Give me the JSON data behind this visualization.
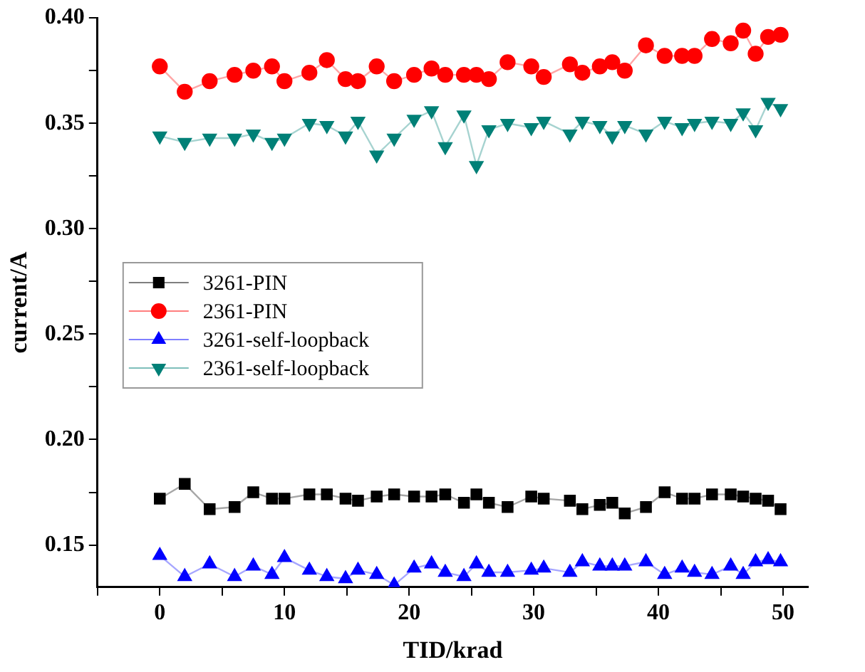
{
  "chart_data": {
    "type": "line",
    "xlabel": "TID/krad",
    "ylabel": "current/A",
    "x": [
      0,
      2,
      4,
      6,
      7.5,
      9,
      10,
      12,
      13.4,
      14.9,
      15.9,
      17.4,
      18.8,
      20.4,
      21.8,
      22.9,
      24.4,
      25.4,
      26.4,
      27.9,
      29.8,
      30.8,
      32.9,
      33.9,
      35.3,
      36.3,
      37.3,
      39,
      40.5,
      41.9,
      42.9,
      44.3,
      45.8,
      46.8,
      47.8,
      48.8,
      49.8
    ],
    "series": [
      {
        "name": "3261-PIN",
        "color": "#000000",
        "marker": "square",
        "values": [
          0.172,
          0.179,
          0.167,
          0.168,
          0.175,
          0.172,
          0.172,
          0.174,
          0.174,
          0.172,
          0.171,
          0.173,
          0.174,
          0.173,
          0.173,
          0.174,
          0.17,
          0.174,
          0.17,
          0.168,
          0.173,
          0.172,
          0.171,
          0.167,
          0.169,
          0.17,
          0.165,
          0.168,
          0.175,
          0.172,
          0.172,
          0.174,
          0.174,
          0.173,
          0.172,
          0.171,
          0.167
        ]
      },
      {
        "name": "2361-PIN",
        "color": "#ff0000",
        "marker": "circle",
        "values": [
          0.377,
          0.365,
          0.37,
          0.373,
          0.375,
          0.377,
          0.37,
          0.374,
          0.38,
          0.371,
          0.37,
          0.377,
          0.37,
          0.373,
          0.376,
          0.373,
          0.373,
          0.373,
          0.371,
          0.379,
          0.377,
          0.372,
          0.378,
          0.374,
          0.377,
          0.379,
          0.375,
          0.387,
          0.382,
          0.382,
          0.382,
          0.39,
          0.388,
          0.394,
          0.383,
          0.391,
          0.392
        ]
      },
      {
        "name": "3261-self-loopback",
        "color": "#0000ff",
        "marker": "triangle",
        "values": [
          0.145,
          0.135,
          0.141,
          0.135,
          0.14,
          0.136,
          0.144,
          0.138,
          0.135,
          0.134,
          0.138,
          0.136,
          0.131,
          0.139,
          0.141,
          0.137,
          0.135,
          0.141,
          0.137,
          0.137,
          0.138,
          0.139,
          0.137,
          0.142,
          0.14,
          0.14,
          0.14,
          0.142,
          0.136,
          0.139,
          0.137,
          0.136,
          0.14,
          0.136,
          0.142,
          0.143,
          0.142
        ]
      },
      {
        "name": "2361-self-loopback",
        "color": "#008077",
        "marker": "triangle-down",
        "values": [
          0.344,
          0.341,
          0.343,
          0.343,
          0.345,
          0.341,
          0.343,
          0.35,
          0.349,
          0.344,
          0.351,
          0.335,
          0.343,
          0.352,
          0.356,
          0.339,
          0.354,
          0.33,
          0.347,
          0.35,
          0.348,
          0.351,
          0.345,
          0.351,
          0.349,
          0.344,
          0.349,
          0.345,
          0.351,
          0.348,
          0.35,
          0.351,
          0.35,
          0.355,
          0.347,
          0.36,
          0.357
        ]
      }
    ],
    "xlim": [
      -5,
      52
    ],
    "xticks": [
      {
        "value": -5,
        "label": null
      },
      0,
      {
        "value": 5,
        "label": null
      },
      10,
      {
        "value": 15,
        "label": null
      },
      20,
      {
        "value": 25,
        "label": null
      },
      30,
      {
        "value": 35,
        "label": null
      },
      40,
      {
        "value": 45,
        "label": null
      },
      50
    ],
    "ylim": [
      0.13,
      0.4
    ],
    "yticks": [
      {
        "value": 0.15,
        "label": "0.15"
      },
      {
        "value": 0.175,
        "label": null
      },
      {
        "value": 0.2,
        "label": "0.20"
      },
      {
        "value": 0.225,
        "label": null
      },
      {
        "value": 0.25,
        "label": "0.25"
      },
      {
        "value": 0.275,
        "label": null
      },
      {
        "value": 0.3,
        "label": "0.30"
      },
      {
        "value": 0.325,
        "label": null
      },
      {
        "value": 0.35,
        "label": "0.35"
      },
      {
        "value": 0.375,
        "label": null
      },
      {
        "value": 0.4,
        "label": "0.40"
      }
    ],
    "grid": false,
    "legend": "left",
    "line_style": "solid"
  }
}
